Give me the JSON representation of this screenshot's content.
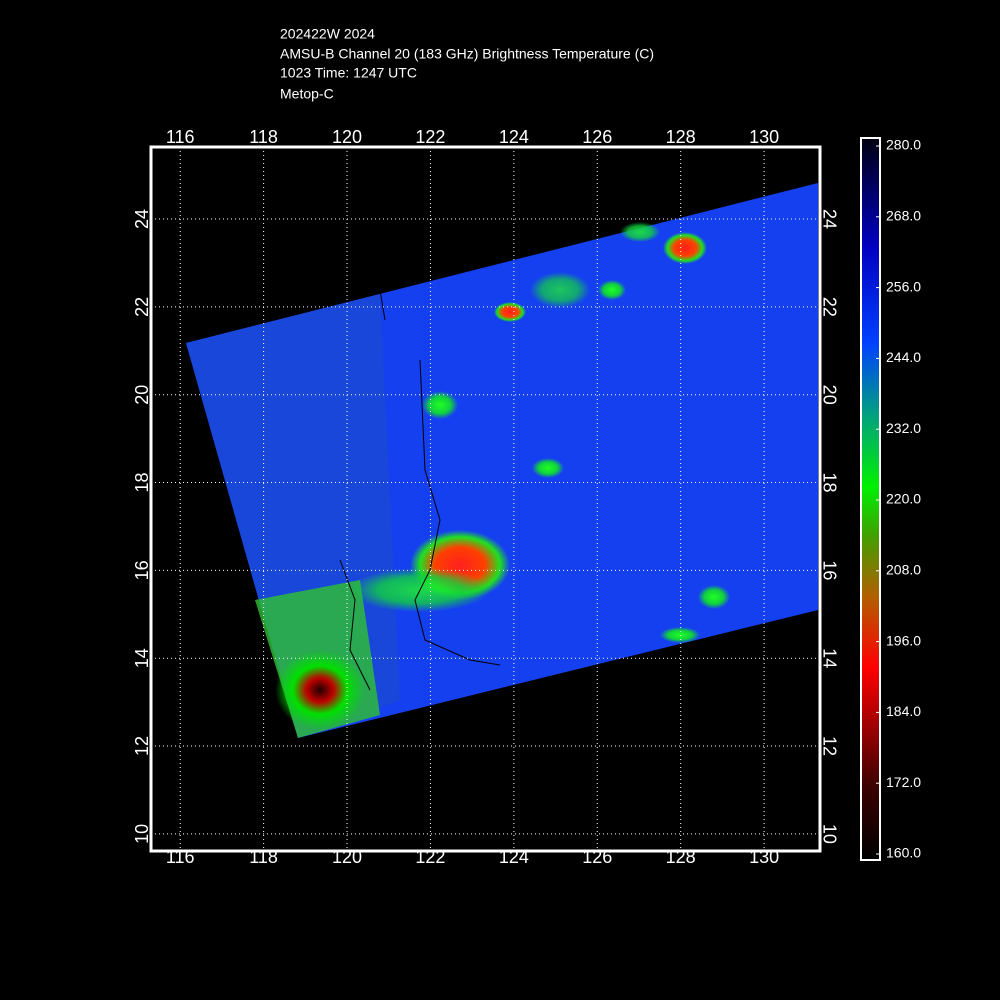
{
  "header": {
    "lines": [
      "202422W 2024",
      "AMSU-B Channel 20 (183 GHz) Brightness Temperature (C)",
      "1023 Time: 1247 UTC",
      "Metop-C"
    ]
  },
  "map": {
    "xlim": [
      115.3,
      131.34
    ],
    "ylim": [
      9.61,
      25.64
    ],
    "xticks": [
      116,
      118,
      120,
      122,
      124,
      126,
      128,
      130
    ],
    "yticks": [
      10,
      12,
      14,
      16,
      18,
      20,
      22,
      24
    ],
    "grid": true
  },
  "colorbar": {
    "lim": [
      160,
      280
    ],
    "ticks": [
      {
        "value": 280,
        "label": "280.0"
      },
      {
        "value": 268,
        "label": "268.0"
      },
      {
        "value": 256,
        "label": "256.0"
      },
      {
        "value": 244,
        "label": "244.0"
      },
      {
        "value": 232,
        "label": "232.0"
      },
      {
        "value": 220,
        "label": "220.0"
      },
      {
        "value": 208,
        "label": "208.0"
      },
      {
        "value": 196,
        "label": "196.0"
      },
      {
        "value": 184,
        "label": "184.0"
      },
      {
        "value": 172,
        "label": "172.0"
      },
      {
        "value": 160,
        "label": "160.0"
      }
    ],
    "colormap": [
      {
        "value": 160,
        "color": "#000000"
      },
      {
        "value": 172,
        "color": "#3a0000"
      },
      {
        "value": 184,
        "color": "#b00000"
      },
      {
        "value": 192,
        "color": "#ff0000"
      },
      {
        "value": 204,
        "color": "#b06000"
      },
      {
        "value": 214,
        "color": "#40a000"
      },
      {
        "value": 222,
        "color": "#00f000"
      },
      {
        "value": 234,
        "color": "#00a080"
      },
      {
        "value": 246,
        "color": "#0040ff"
      },
      {
        "value": 262,
        "color": "#0000c0"
      },
      {
        "value": 272,
        "color": "#000060"
      },
      {
        "value": 280,
        "color": "#000010"
      }
    ]
  }
}
